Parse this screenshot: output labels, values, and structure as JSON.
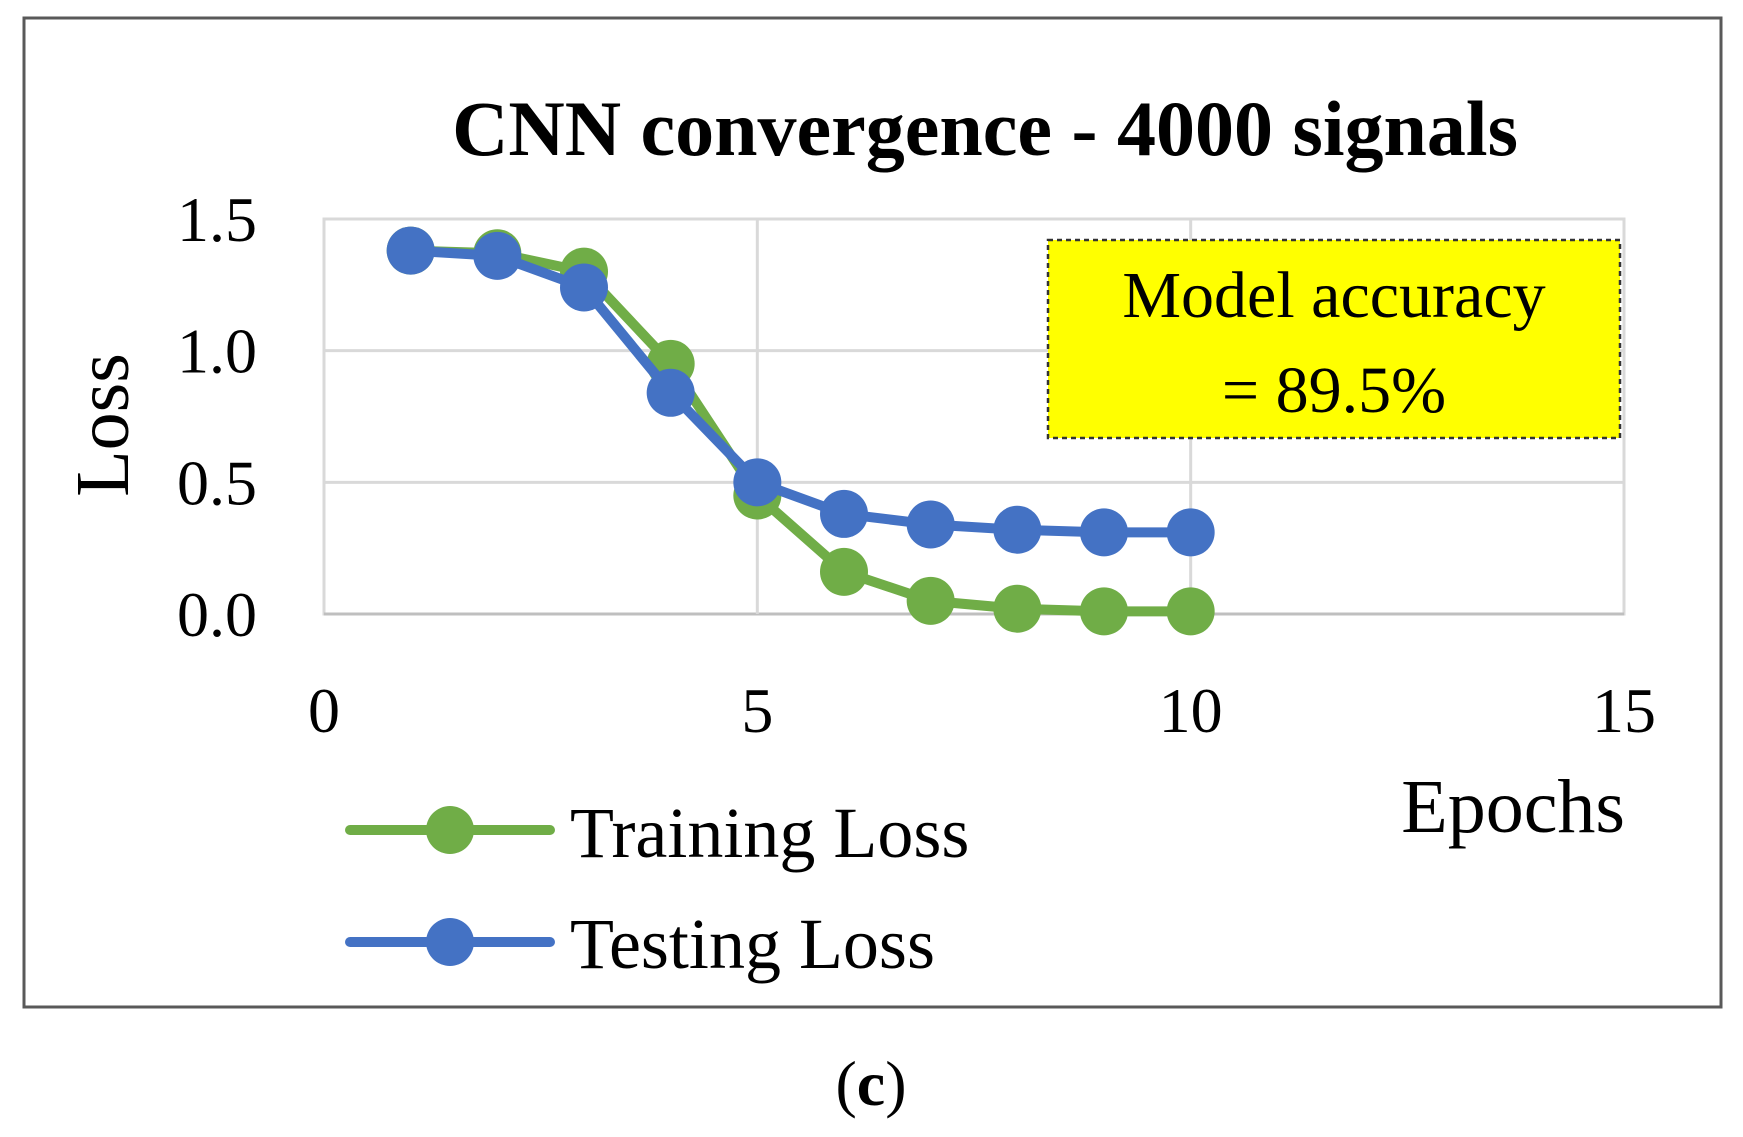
{
  "chart_data": {
    "type": "line",
    "title": "CNN convergence - 4000 signals",
    "xlabel": "Epochs",
    "ylabel": "Loss",
    "xlim": [
      0,
      15
    ],
    "ylim": [
      0,
      1.5
    ],
    "xticks": [
      "0",
      "5",
      "10",
      "15"
    ],
    "yticks": [
      "0.0",
      "0.5",
      "1.0",
      "1.5"
    ],
    "grid": true,
    "legend_position": "bottom-left",
    "x": [
      1,
      2,
      3,
      4,
      5,
      6,
      7,
      8,
      9,
      10
    ],
    "series": [
      {
        "name": "Training Loss",
        "color": "#70ad47",
        "values": [
          1.38,
          1.37,
          1.3,
          0.95,
          0.45,
          0.16,
          0.05,
          0.02,
          0.01,
          0.01
        ]
      },
      {
        "name": "Testing Loss",
        "color": "#4472c4",
        "values": [
          1.38,
          1.36,
          1.24,
          0.84,
          0.5,
          0.38,
          0.34,
          0.32,
          0.31,
          0.31
        ]
      }
    ],
    "annotation": {
      "line1": "Model accuracy",
      "line2": "= 89.5%",
      "background": "#ffff00"
    }
  },
  "caption": {
    "open": "(",
    "letter": "c",
    "close": ")"
  }
}
